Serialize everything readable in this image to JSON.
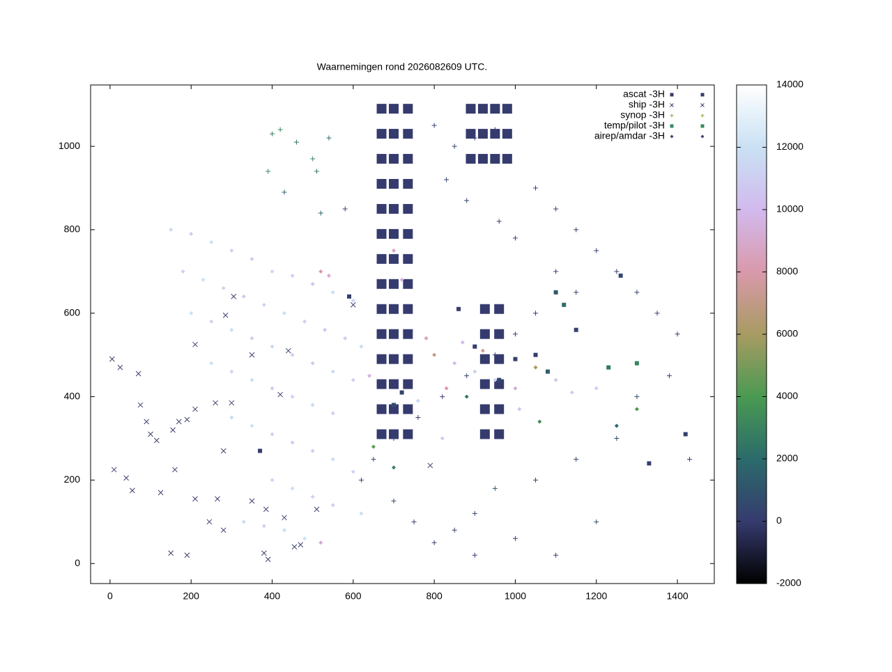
{
  "chart_data": {
    "type": "scatter",
    "title": "Waarnemingen rond 2026082609 UTC.",
    "xlim": [
      -48,
      1491
    ],
    "ylim": [
      -48,
      1147
    ],
    "xticks": [
      0,
      200,
      400,
      600,
      800,
      1000,
      1200,
      1400
    ],
    "yticks": [
      0,
      200,
      400,
      600,
      800,
      1000
    ],
    "legend": "top right",
    "colorbar": {
      "zlim": [
        -2000,
        14000
      ],
      "zticks": [
        -2000,
        0,
        2000,
        4000,
        6000,
        8000,
        10000,
        12000,
        14000
      ],
      "colors": [
        "#000000",
        "#363b6e",
        "#2b6b6b",
        "#4a9a52",
        "#a89b62",
        "#d999ab",
        "#d2baee",
        "#c9e1f4",
        "#ffffff"
      ]
    },
    "series": [
      {
        "name": "ascat -3H",
        "marker": "square",
        "color": "#363b6e",
        "x": [
          670,
          700,
          735,
          670,
          700,
          735,
          670,
          700,
          735,
          670,
          700,
          735,
          670,
          700,
          735,
          670,
          700,
          735,
          670,
          700,
          735,
          670,
          700,
          735,
          670,
          700,
          735,
          670,
          700,
          735,
          670,
          700,
          735,
          670,
          700,
          735,
          670,
          700,
          735,
          670,
          700,
          735,
          890,
          920,
          950,
          980,
          890,
          920,
          950,
          980,
          890,
          920,
          950,
          980,
          925,
          960,
          925,
          960,
          925,
          960,
          925,
          960,
          925,
          960,
          925,
          960
        ],
        "values": [
          1090,
          1090,
          1090,
          1030,
          1030,
          1030,
          970,
          970,
          970,
          910,
          910,
          910,
          850,
          850,
          850,
          790,
          790,
          790,
          730,
          730,
          730,
          670,
          670,
          670,
          610,
          610,
          610,
          550,
          550,
          550,
          490,
          490,
          490,
          430,
          430,
          430,
          370,
          370,
          370,
          310,
          310,
          310,
          1090,
          1090,
          1090,
          1090,
          1030,
          1030,
          1030,
          1030,
          970,
          970,
          970,
          970,
          610,
          610,
          550,
          550,
          490,
          490,
          430,
          430,
          370,
          370,
          310,
          310
        ]
      },
      {
        "name": "ship -3H",
        "marker": "x",
        "color": "#3a3f6a",
        "x": [
          5,
          25,
          70,
          210,
          260,
          300,
          210,
          190,
          75,
          90,
          100,
          115,
          155,
          170,
          280,
          160,
          40,
          10,
          55,
          125,
          210,
          265,
          245,
          280,
          150,
          190,
          380,
          390,
          455,
          470,
          350,
          385,
          430,
          510,
          305,
          285,
          350,
          440,
          420,
          600,
          790
        ],
        "values": [
          490,
          470,
          455,
          525,
          385,
          385,
          370,
          345,
          380,
          340,
          310,
          295,
          320,
          340,
          270,
          225,
          205,
          225,
          175,
          170,
          155,
          155,
          100,
          80,
          25,
          20,
          25,
          10,
          40,
          45,
          150,
          130,
          110,
          130,
          640,
          595,
          500,
          510,
          405,
          620,
          235
        ]
      },
      {
        "name": "synop -3H",
        "marker": "plus",
        "color": "#9a9a3a",
        "x": [
          400,
          420,
          460,
          500,
          540,
          510,
          430,
          390,
          580,
          520,
          800,
          850,
          900,
          950,
          830,
          880,
          960,
          1000,
          1050,
          1100,
          1150,
          1200,
          1250,
          1300,
          1350,
          1400,
          1100,
          1150,
          1050,
          1000,
          950,
          880,
          820,
          760,
          700,
          650,
          620,
          700,
          750,
          800,
          850,
          900,
          950,
          1050,
          1150,
          1250,
          1300,
          1380,
          1430,
          1200,
          1100,
          1000,
          900
        ],
        "values": [
          1030,
          1040,
          1010,
          970,
          1020,
          940,
          890,
          940,
          850,
          840,
          1050,
          1000,
          1020,
          1040,
          920,
          870,
          820,
          780,
          900,
          850,
          800,
          750,
          700,
          650,
          600,
          550,
          700,
          650,
          600,
          550,
          500,
          450,
          400,
          350,
          300,
          250,
          200,
          150,
          100,
          50,
          80,
          120,
          180,
          200,
          250,
          300,
          400,
          450,
          250,
          100,
          20,
          60,
          20
        ],
        "z": [
          2800,
          3200,
          2500,
          3000,
          2000,
          2600,
          1500,
          3000,
          400,
          1800,
          200,
          150,
          300,
          100,
          250,
          150,
          200,
          100,
          150,
          200,
          180,
          220,
          120,
          300,
          200,
          150,
          250,
          350,
          100,
          150,
          200,
          300,
          100,
          50,
          400,
          800,
          600,
          500,
          300,
          150,
          100,
          200,
          1200,
          300,
          400,
          500,
          600,
          300,
          100,
          800,
          50,
          100,
          20
        ]
      },
      {
        "name": "temp/pilot -3H",
        "marker": "square",
        "color": "#3a8a60",
        "x": [
          1000,
          1050,
          1080,
          960,
          900,
          1150,
          1230,
          1300,
          1420,
          1330,
          1100,
          860,
          700,
          590,
          370,
          720,
          1120,
          1260
        ],
        "values": [
          490,
          500,
          460,
          440,
          520,
          560,
          470,
          480,
          310,
          240,
          650,
          610,
          380,
          640,
          270,
          410,
          620,
          690
        ],
        "z": [
          300,
          200,
          1500,
          500,
          100,
          200,
          2500,
          3000,
          200,
          100,
          1200,
          50,
          800,
          100,
          30,
          400,
          2000,
          600
        ]
      },
      {
        "name": "airep/amdar -3H",
        "marker": "diamond",
        "color": "#404070",
        "x": [
          150,
          200,
          250,
          300,
          350,
          400,
          450,
          500,
          550,
          600,
          180,
          230,
          280,
          330,
          380,
          430,
          480,
          530,
          580,
          620,
          200,
          250,
          300,
          350,
          400,
          450,
          500,
          550,
          600,
          250,
          300,
          350,
          400,
          450,
          500,
          550,
          300,
          350,
          400,
          450,
          500,
          550,
          400,
          450,
          500,
          550,
          330,
          380,
          430,
          480,
          520,
          700,
          720,
          800,
          850,
          900,
          950,
          1000,
          1050,
          1100,
          1200,
          830,
          880,
          760,
          640,
          870,
          920,
          820,
          700,
          650,
          780,
          520,
          540,
          600,
          620,
          1010,
          1060,
          1250,
          1300,
          1140
        ],
        "values": [
          800,
          790,
          770,
          750,
          730,
          700,
          690,
          670,
          650,
          630,
          700,
          680,
          660,
          640,
          620,
          600,
          580,
          560,
          540,
          520,
          600,
          580,
          560,
          540,
          520,
          500,
          480,
          460,
          440,
          480,
          460,
          440,
          420,
          400,
          380,
          360,
          350,
          330,
          310,
          290,
          270,
          250,
          200,
          180,
          160,
          140,
          100,
          90,
          80,
          60,
          50,
          750,
          680,
          500,
          480,
          460,
          440,
          420,
          470,
          440,
          420,
          420,
          400,
          390,
          450,
          530,
          510,
          300,
          230,
          280,
          540,
          700,
          690,
          220,
          120,
          370,
          340,
          330,
          370,
          410
        ],
        "z": [
          11500,
          11000,
          12000,
          11200,
          10800,
          11600,
          11000,
          10500,
          11800,
          11300,
          11000,
          12000,
          11500,
          10800,
          11400,
          11900,
          11200,
          10600,
          11000,
          11700,
          12100,
          11300,
          11800,
          10900,
          11500,
          11000,
          10700,
          11600,
          11200,
          12000,
          11400,
          11800,
          10900,
          11300,
          11600,
          11000,
          11500,
          12000,
          11200,
          10800,
          11000,
          11700,
          11500,
          11900,
          11300,
          11000,
          11600,
          11200,
          11800,
          12000,
          9000,
          8500,
          9500,
          7000,
          10000,
          11000,
          11500,
          9000,
          6000,
          10500,
          11000,
          8000,
          2500,
          11500,
          9500,
          10000,
          7500,
          11000,
          3000,
          4500,
          8500,
          8000,
          9000,
          11500,
          11800,
          10500,
          3500,
          2000,
          4000,
          11000
        ]
      }
    ]
  }
}
